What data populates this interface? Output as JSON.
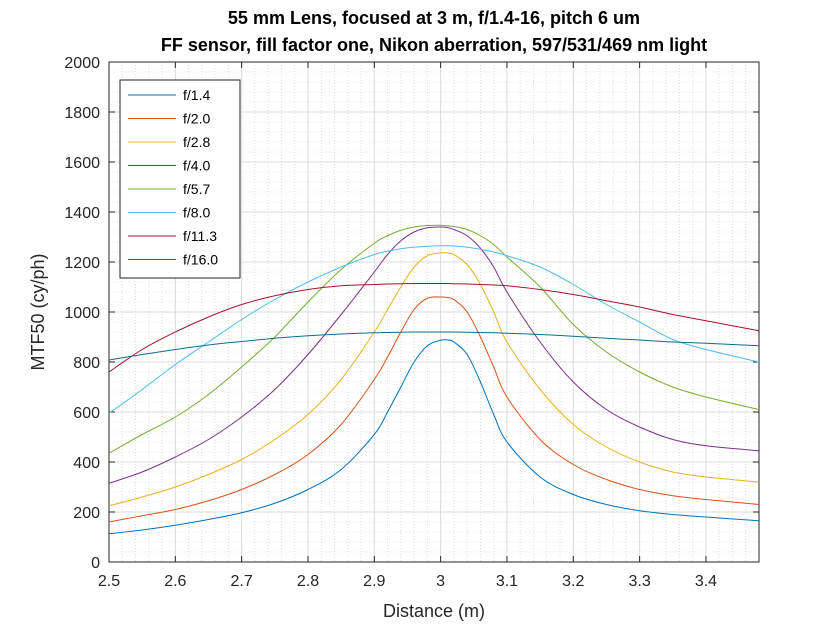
{
  "chart_data": {
    "type": "line",
    "title": "55 mm Lens, focused at 3 m, f/1.4-16, pitch 6 um",
    "subtitle": "FF sensor, fill factor one, Nikon aberration, 597/531/469 nm light",
    "xlabel": "Distance (m)",
    "ylabel": "MTF50 (cy/ph)",
    "xlim": [
      2.5,
      3.48
    ],
    "ylim": [
      0,
      2000
    ],
    "xticks": [
      2.5,
      2.6,
      2.7,
      2.8,
      2.9,
      3,
      3.1,
      3.2,
      3.3,
      3.4
    ],
    "xtick_labels": [
      "2.5",
      "2.6",
      "2.7",
      "2.8",
      "2.9",
      "3",
      "3.1",
      "3.2",
      "3.3",
      "3.4"
    ],
    "yticks": [
      0,
      200,
      400,
      600,
      800,
      1000,
      1200,
      1400,
      1600,
      1800,
      2000
    ],
    "ytick_labels": [
      "0",
      "200",
      "400",
      "600",
      "800",
      "1000",
      "1200",
      "1400",
      "1600",
      "1800",
      "2000"
    ],
    "grid": true,
    "legend_position": "top-left",
    "x": [
      2.5,
      2.55,
      2.6,
      2.65,
      2.7,
      2.75,
      2.8,
      2.85,
      2.9,
      2.92,
      2.94,
      2.96,
      2.98,
      3.0,
      3.01,
      3.02,
      3.04,
      3.06,
      3.08,
      3.1,
      3.15,
      3.2,
      3.25,
      3.3,
      3.35,
      3.4,
      3.48
    ],
    "series": [
      {
        "name": "f/1.4",
        "color": "#0072BD",
        "values": [
          113,
          128,
          147,
          170,
          197,
          235,
          290,
          370,
          510,
          600,
          700,
          800,
          865,
          887,
          888,
          880,
          830,
          720,
          590,
          480,
          340,
          270,
          230,
          205,
          190,
          180,
          165
        ]
      },
      {
        "name": "f/2.0",
        "color": "#D95319",
        "values": [
          160,
          185,
          210,
          245,
          290,
          350,
          430,
          550,
          730,
          820,
          920,
          1010,
          1055,
          1060,
          1058,
          1050,
          1000,
          900,
          780,
          660,
          490,
          390,
          330,
          290,
          265,
          250,
          230
        ]
      },
      {
        "name": "f/2.8",
        "color": "#EDB120",
        "values": [
          225,
          260,
          300,
          350,
          410,
          490,
          590,
          730,
          920,
          1010,
          1100,
          1180,
          1225,
          1237,
          1236,
          1230,
          1190,
          1110,
          1000,
          880,
          690,
          550,
          460,
          400,
          360,
          340,
          320
        ]
      },
      {
        "name": "f/4.0",
        "color": "#7E2F8E",
        "values": [
          315,
          360,
          420,
          490,
          580,
          690,
          830,
          990,
          1160,
          1230,
          1285,
          1320,
          1337,
          1340,
          1338,
          1330,
          1305,
          1255,
          1180,
          1080,
          880,
          720,
          610,
          540,
          490,
          465,
          445
        ]
      },
      {
        "name": "f/5.7",
        "color": "#77AC30",
        "values": [
          435,
          510,
          580,
          670,
          780,
          900,
          1040,
          1170,
          1275,
          1305,
          1327,
          1340,
          1346,
          1347,
          1345,
          1342,
          1330,
          1305,
          1270,
          1220,
          1100,
          950,
          840,
          760,
          700,
          660,
          610
        ]
      },
      {
        "name": "f/8.0",
        "color": "#4DBEEE",
        "values": [
          595,
          690,
          790,
          880,
          970,
          1050,
          1120,
          1180,
          1230,
          1243,
          1253,
          1259,
          1263,
          1265,
          1265,
          1264,
          1259,
          1251,
          1240,
          1225,
          1180,
          1110,
          1030,
          960,
          890,
          850,
          800
        ]
      },
      {
        "name": "f/11.3",
        "color": "#A2142F",
        "values": [
          760,
          850,
          920,
          980,
          1030,
          1065,
          1090,
          1105,
          1110,
          1112,
          1113,
          1114,
          1114,
          1114,
          1114,
          1113,
          1112,
          1110,
          1108,
          1105,
          1090,
          1070,
          1045,
          1020,
          990,
          965,
          925
        ]
      },
      {
        "name": "f/16.0",
        "color": "#0E6E8E",
        "values": [
          808,
          830,
          850,
          868,
          882,
          895,
          905,
          912,
          917,
          918,
          919,
          920,
          920,
          920,
          920,
          920,
          919,
          918,
          917,
          915,
          910,
          903,
          895,
          888,
          880,
          875,
          865
        ]
      }
    ]
  }
}
